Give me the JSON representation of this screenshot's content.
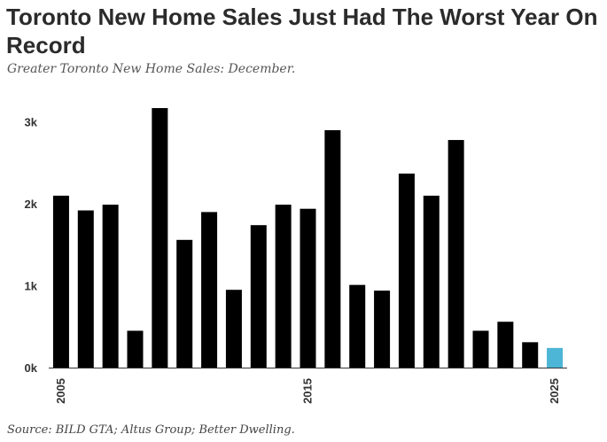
{
  "title": "Toronto New Home Sales Just Had The Worst Year On Record",
  "subtitle": "Greater Toronto New Home Sales: December.",
  "source": "Source: BILD GTA; Altus Group; Better Dwelling.",
  "chart_data": {
    "type": "bar",
    "title": "Toronto New Home Sales Just Had The Worst Year On Record",
    "subtitle": "Greater Toronto New Home Sales: December.",
    "xlabel": "",
    "ylabel": "",
    "categories": [
      2005,
      2006,
      2007,
      2008,
      2009,
      2010,
      2011,
      2012,
      2013,
      2014,
      2015,
      2016,
      2017,
      2018,
      2019,
      2020,
      2021,
      2022,
      2023,
      2024,
      2025
    ],
    "values": [
      2100,
      1920,
      1990,
      450,
      3170,
      1560,
      1900,
      950,
      1740,
      1990,
      1940,
      2900,
      1010,
      940,
      2370,
      2100,
      2780,
      450,
      560,
      310,
      240
    ],
    "highlight_index": 20,
    "bar_color": "#000000",
    "highlight_color": "#4db5d6",
    "ylim": [
      0,
      3300
    ],
    "yticks": [
      0,
      1000,
      2000,
      3000
    ],
    "ytick_labels": [
      "0k",
      "1k",
      "2k",
      "3k"
    ],
    "xtick_labels": [
      "2005",
      "2015",
      "2025"
    ],
    "grid": false
  }
}
